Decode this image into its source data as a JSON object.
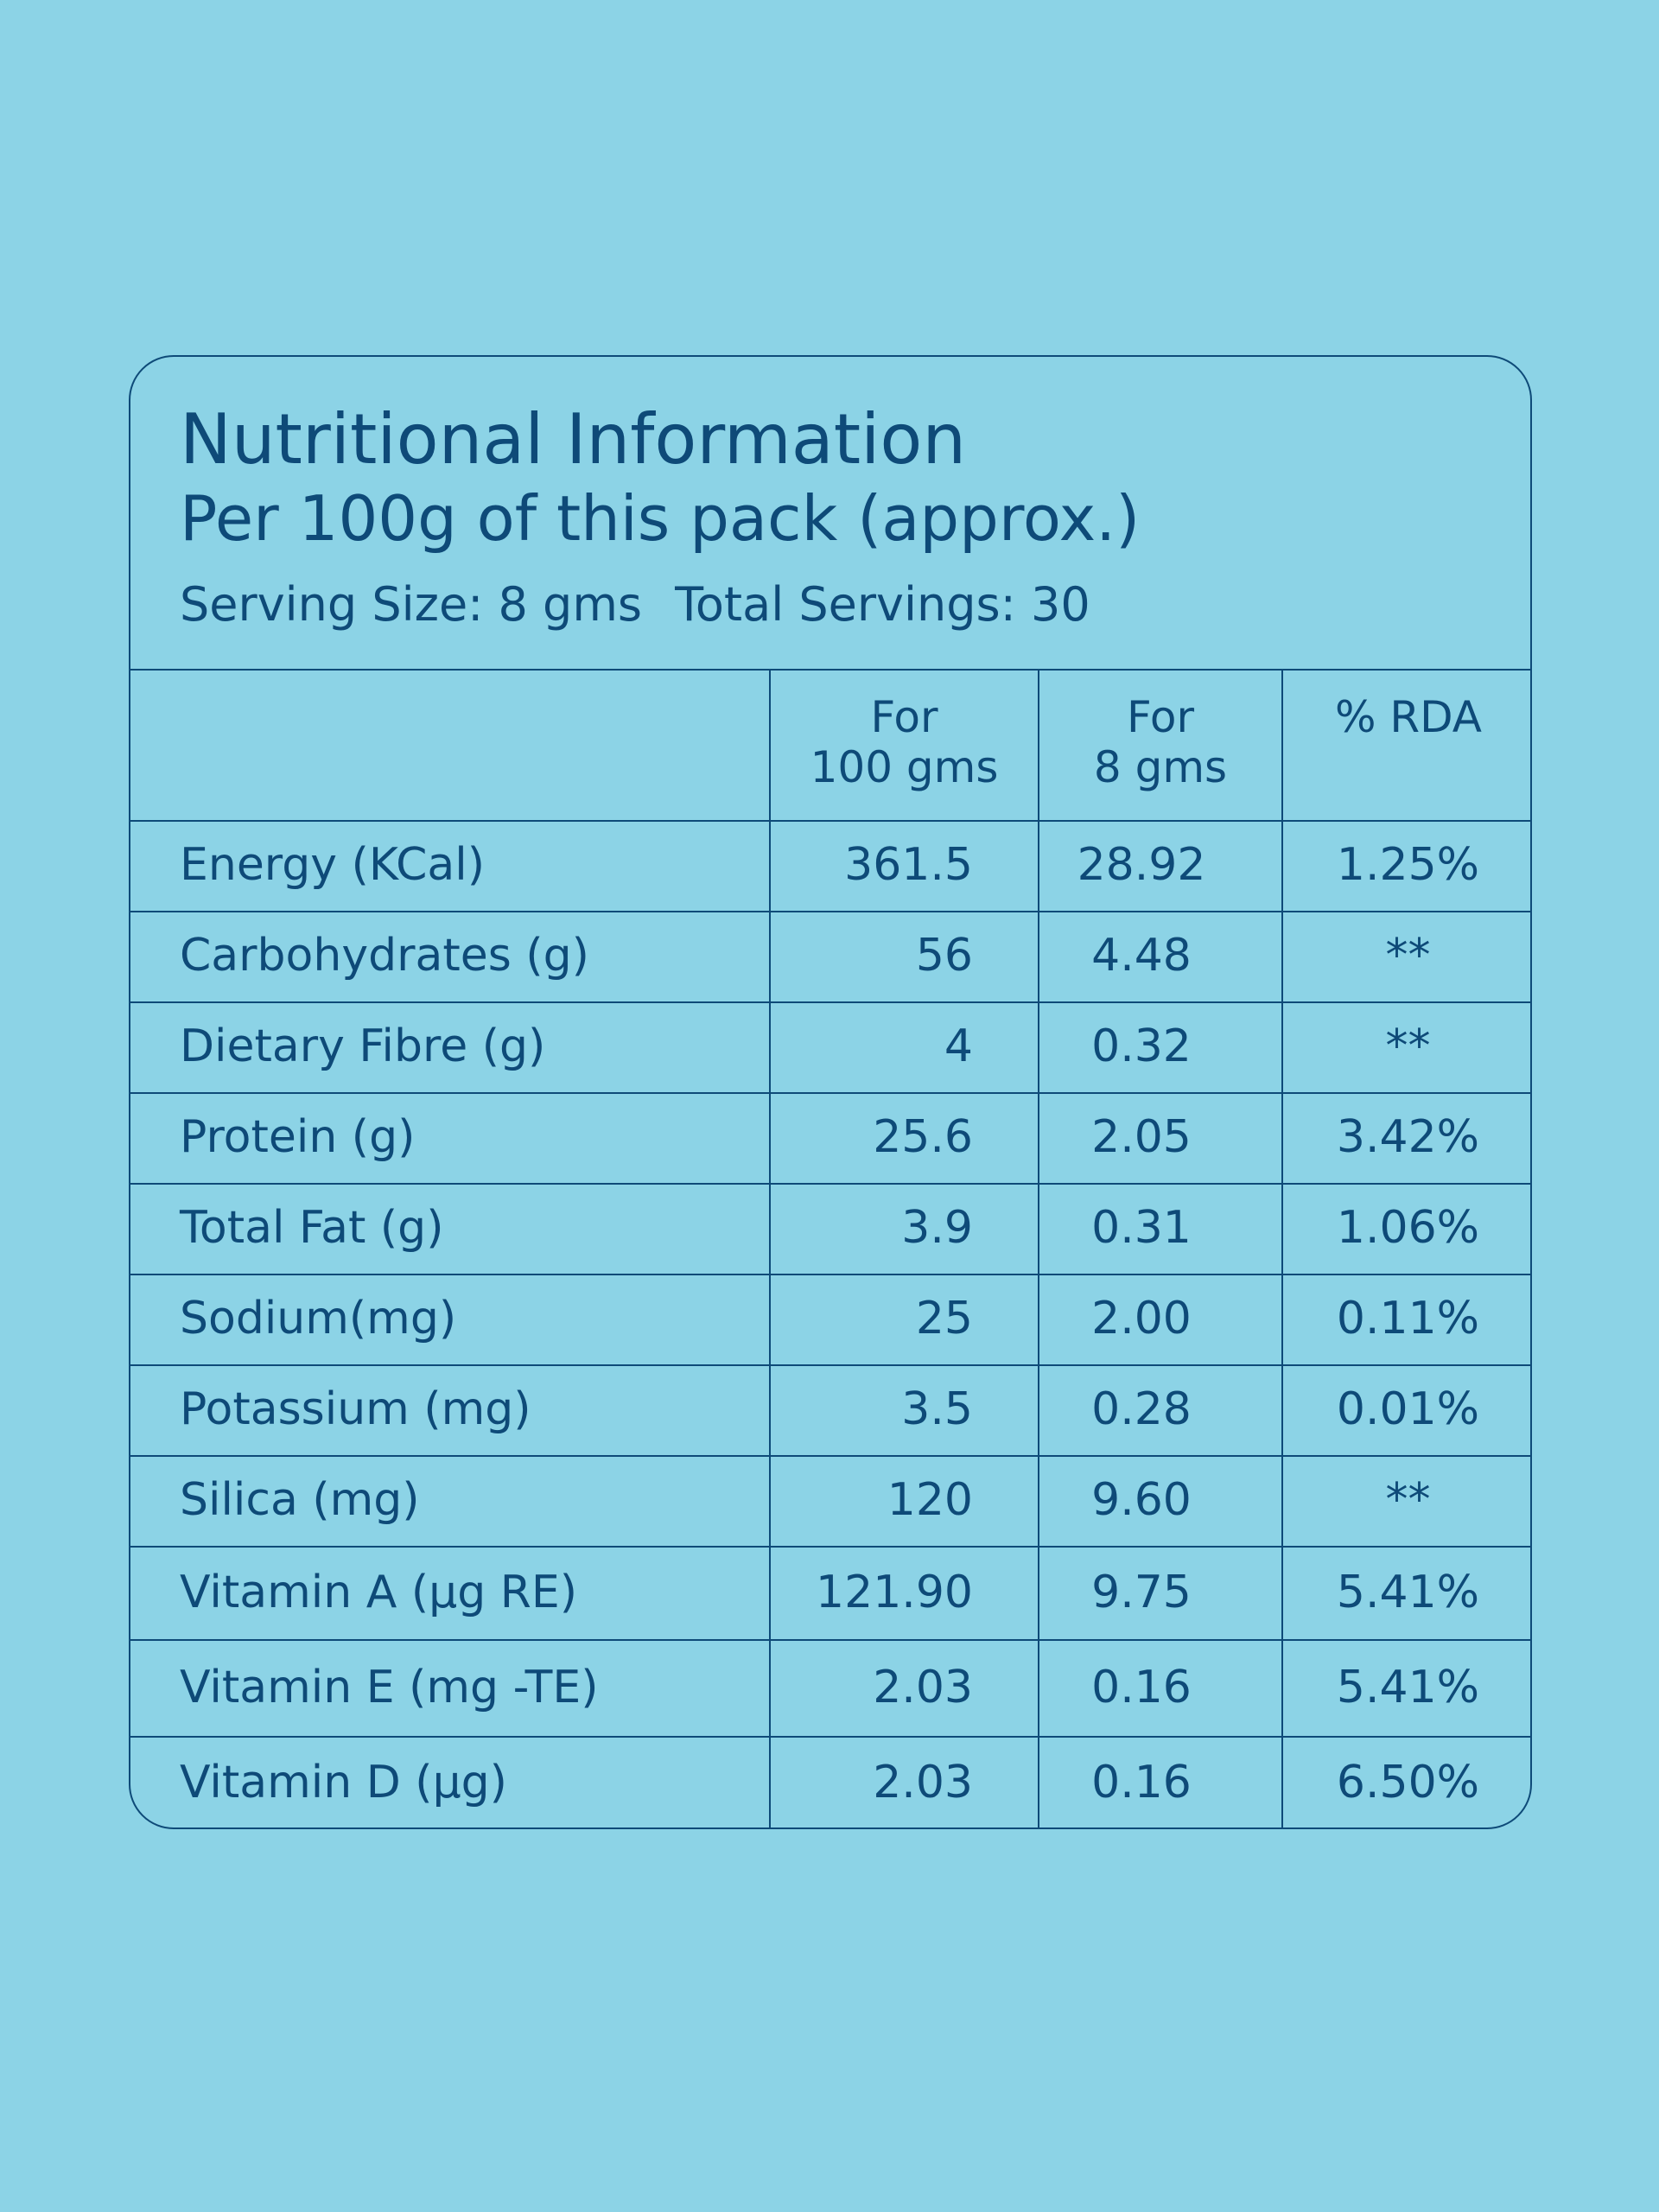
{
  "panel": {
    "title": "Nutritional Information",
    "subtitle": "Per 100g of this pack (approx.)",
    "serving_size": "Serving Size: 8 gms",
    "total_servings": "Total Servings: 30"
  },
  "table": {
    "headers": {
      "col1_line1": "For",
      "col1_line2": "100 gms",
      "col2_line1": "For",
      "col2_line2": "8 gms",
      "col3": "% RDA"
    },
    "rows": [
      {
        "name": "Energy (KCal)",
        "per100": "361.5",
        "per8": "28.92",
        "rda": "1.25%"
      },
      {
        "name": "Carbohydrates (g)",
        "per100": "56",
        "per8": "4.48",
        "rda": "**"
      },
      {
        "name": "Dietary Fibre (g)",
        "per100": "4",
        "per8": "0.32",
        "rda": "**"
      },
      {
        "name": "Protein (g)",
        "per100": "25.6",
        "per8": "2.05",
        "rda": "3.42%"
      },
      {
        "name": "Total Fat (g)",
        "per100": "3.9",
        "per8": "0.31",
        "rda": "1.06%"
      },
      {
        "name": "Sodium(mg)",
        "per100": "25",
        "per8": "2.00",
        "rda": "0.11%"
      },
      {
        "name": "Potassium (mg)",
        "per100": "3.5",
        "per8": "0.28",
        "rda": "0.01%"
      },
      {
        "name": "Silica (mg)",
        "per100": "120",
        "per8": "9.60",
        "rda": "**"
      },
      {
        "name": "Vitamin A (µg RE)",
        "per100": "121.90",
        "per8": "9.75",
        "rda": "5.41%"
      },
      {
        "name": "Vitamin E (mg -TE)",
        "per100": "2.03",
        "per8": "0.16",
        "rda": "5.41%"
      },
      {
        "name": "Vitamin D (µg)",
        "per100": "2.03",
        "per8": "0.16",
        "rda": "6.50%"
      }
    ]
  },
  "colors": {
    "background": "#8cd3e6",
    "ink": "#0e4a78"
  }
}
